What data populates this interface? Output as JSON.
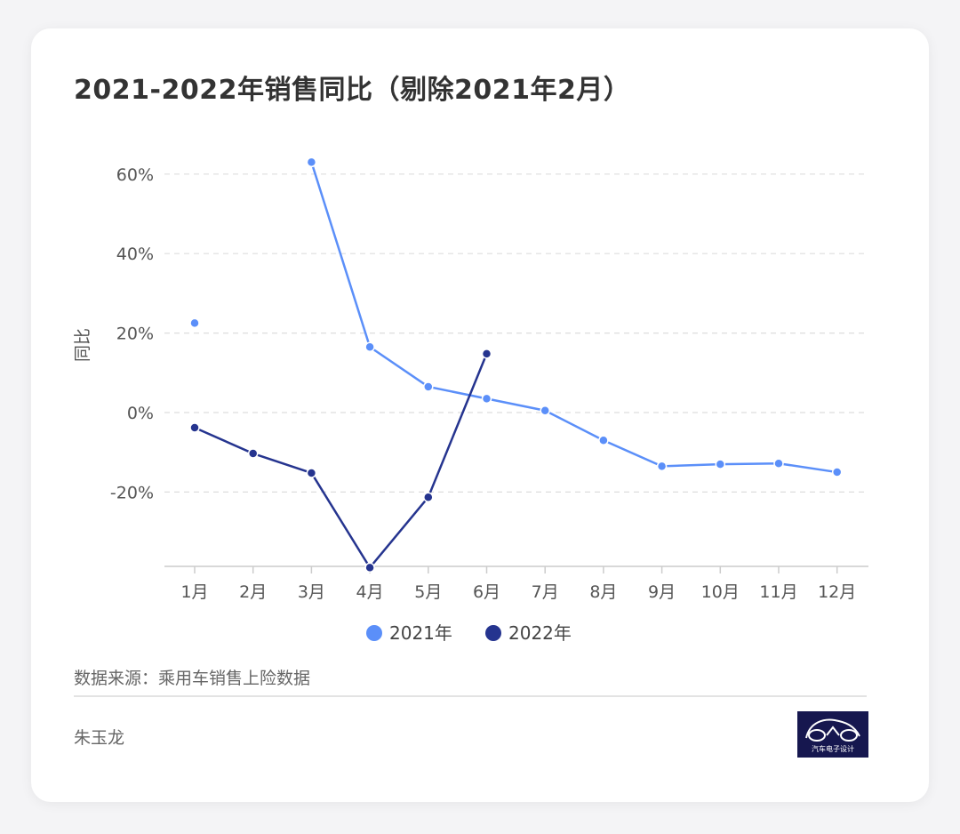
{
  "title": "2021-2022年销售同比（剔除2021年2月）",
  "source": "数据来源：乘用车销售上险数据",
  "author": "朱玉龙",
  "logo": {
    "text": "汽车电子设计"
  },
  "colors": {
    "series_2021": "#5b8ff9",
    "series_2022": "#25348f"
  },
  "chart_data": {
    "type": "line",
    "title": "2021-2022年销售同比（剔除2021年2月）",
    "xlabel": "",
    "ylabel": "同比",
    "categories": [
      "1月",
      "2月",
      "3月",
      "4月",
      "5月",
      "6月",
      "7月",
      "8月",
      "9月",
      "10月",
      "11月",
      "12月"
    ],
    "yticks": [
      -20,
      0,
      20,
      40,
      60
    ],
    "ytick_labels": [
      "-20%",
      "0%",
      "20%",
      "40%",
      "60%"
    ],
    "ylim": [
      -39,
      66
    ],
    "grid": true,
    "legend_position": "bottom",
    "series": [
      {
        "name": "2021年",
        "values": [
          22.5,
          null,
          63,
          16.5,
          6.5,
          3.5,
          0.5,
          -7,
          -13.5,
          -13,
          -12.8,
          -15
        ]
      },
      {
        "name": "2022年",
        "values": [
          -3.8,
          -10.3,
          -15.2,
          -39,
          -21.3,
          14.8,
          null,
          null,
          null,
          null,
          null,
          null
        ]
      }
    ]
  }
}
